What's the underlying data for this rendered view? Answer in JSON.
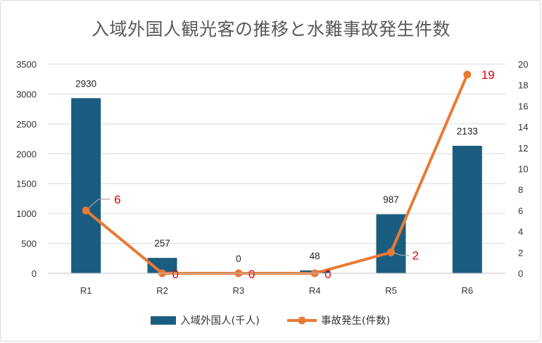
{
  "title": "入域外国人観光客の推移と水難事故発生件数",
  "colors": {
    "bar": "#1a5d80",
    "line": "#e97a35",
    "line_label": "#e00000",
    "grid": "#d9d9d9",
    "leader": "#a6a6a6"
  },
  "chart_data": {
    "type": "bar+line",
    "title": "入域外国人観光客の推移と水難事故発生件数",
    "categories": [
      "R1",
      "R2",
      "R3",
      "R4",
      "R5",
      "R6"
    ],
    "series": [
      {
        "name": "入域外国人(千人)",
        "type": "bar",
        "axis": "left",
        "values": [
          2930,
          257,
          0,
          48,
          987,
          2133
        ],
        "labels": [
          "2930",
          "257",
          "0",
          "48",
          "987",
          "2133"
        ]
      },
      {
        "name": "事故発生(件数)",
        "type": "line",
        "axis": "right",
        "values": [
          6,
          0,
          0,
          0,
          2,
          19
        ],
        "labels": [
          "6",
          "0",
          "0",
          "0",
          "2",
          "19"
        ]
      }
    ],
    "left_axis": {
      "min": 0,
      "max": 3500,
      "ticks": [
        "0",
        "500",
        "1000",
        "1500",
        "2000",
        "2500",
        "3000",
        "3500"
      ]
    },
    "right_axis": {
      "min": 0,
      "max": 20,
      "ticks": [
        "0",
        "2",
        "4",
        "6",
        "8",
        "10",
        "12",
        "14",
        "16",
        "18",
        "20"
      ]
    },
    "grid": true,
    "legend": "bottom"
  }
}
